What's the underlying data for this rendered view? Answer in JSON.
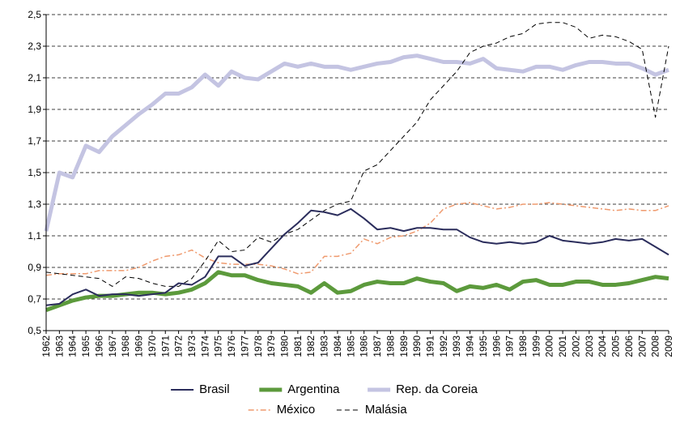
{
  "chart_data": {
    "type": "line",
    "categories": [
      "1962",
      "1963",
      "1964",
      "1965",
      "1966",
      "1967",
      "1968",
      "1969",
      "1970",
      "1971",
      "1972",
      "1973",
      "1974",
      "1975",
      "1976",
      "1977",
      "1978",
      "1979",
      "1980",
      "1981",
      "1982",
      "1983",
      "1984",
      "1985",
      "1986",
      "1987",
      "1988",
      "1989",
      "1990",
      "1991",
      "1992",
      "1993",
      "1994",
      "1995",
      "1996",
      "1997",
      "1998",
      "1999",
      "2000",
      "2001",
      "2002",
      "2003",
      "2004",
      "2005",
      "2006",
      "2007",
      "2008",
      "2009"
    ],
    "series": [
      {
        "name": "Brasil",
        "color": "#2b2d5c",
        "linewidth": 2,
        "linestyle": "solid",
        "values": [
          0.66,
          0.67,
          0.73,
          0.76,
          0.72,
          0.73,
          0.73,
          0.72,
          0.73,
          0.74,
          0.8,
          0.79,
          0.84,
          0.97,
          0.97,
          0.91,
          0.93,
          1.02,
          1.11,
          1.18,
          1.26,
          1.25,
          1.23,
          1.27,
          1.21,
          1.14,
          1.15,
          1.13,
          1.15,
          1.15,
          1.14,
          1.14,
          1.09,
          1.06,
          1.05,
          1.06,
          1.05,
          1.06,
          1.1,
          1.07,
          1.06,
          1.05,
          1.06,
          1.08,
          1.07,
          1.08,
          1.03,
          0.98
        ]
      },
      {
        "name": "Argentina",
        "color": "#5c9a3c",
        "linewidth": 5,
        "linestyle": "solid",
        "values": [
          0.63,
          0.66,
          0.69,
          0.71,
          0.72,
          0.72,
          0.73,
          0.74,
          0.74,
          0.73,
          0.74,
          0.76,
          0.8,
          0.87,
          0.85,
          0.85,
          0.82,
          0.8,
          0.79,
          0.78,
          0.74,
          0.8,
          0.74,
          0.75,
          0.79,
          0.81,
          0.8,
          0.8,
          0.83,
          0.81,
          0.8,
          0.75,
          0.78,
          0.77,
          0.79,
          0.76,
          0.81,
          0.82,
          0.79,
          0.79,
          0.81,
          0.81,
          0.79,
          0.79,
          0.8,
          0.82,
          0.84,
          0.83
        ]
      },
      {
        "name": "Rep. da Coreia",
        "color": "#c4c4e2",
        "linewidth": 5,
        "linestyle": "solid",
        "values": [
          1.13,
          1.5,
          1.47,
          1.67,
          1.63,
          1.73,
          1.8,
          1.87,
          1.93,
          2.0,
          2.0,
          2.04,
          2.12,
          2.05,
          2.14,
          2.1,
          2.09,
          2.14,
          2.19,
          2.17,
          2.19,
          2.17,
          2.17,
          2.15,
          2.17,
          2.19,
          2.2,
          2.23,
          2.24,
          2.22,
          2.2,
          2.2,
          2.19,
          2.22,
          2.16,
          2.15,
          2.14,
          2.17,
          2.17,
          2.15,
          2.18,
          2.2,
          2.2,
          2.19,
          2.19,
          2.16,
          2.12,
          2.15
        ]
      },
      {
        "name": "México",
        "color": "#ef9a6e",
        "linewidth": 1.5,
        "linestyle": "dashdot",
        "values": [
          0.85,
          0.86,
          0.86,
          0.86,
          0.88,
          0.88,
          0.88,
          0.9,
          0.94,
          0.97,
          0.98,
          1.01,
          0.96,
          0.93,
          0.92,
          0.92,
          0.92,
          0.91,
          0.89,
          0.86,
          0.87,
          0.97,
          0.97,
          0.99,
          1.08,
          1.05,
          1.09,
          1.1,
          1.13,
          1.18,
          1.27,
          1.3,
          1.31,
          1.29,
          1.27,
          1.28,
          1.3,
          1.3,
          1.31,
          1.3,
          1.29,
          1.28,
          1.27,
          1.26,
          1.27,
          1.26,
          1.26,
          1.29
        ]
      },
      {
        "name": "Malásia",
        "color": "#000000",
        "linewidth": 1,
        "linestyle": "dashed",
        "values": [
          0.87,
          0.86,
          0.85,
          0.84,
          0.83,
          0.78,
          0.84,
          0.83,
          0.8,
          0.78,
          0.78,
          0.83,
          0.94,
          1.07,
          1.0,
          1.01,
          1.09,
          1.06,
          1.11,
          1.14,
          1.2,
          1.26,
          1.3,
          1.32,
          1.51,
          1.55,
          1.64,
          1.73,
          1.82,
          1.96,
          2.05,
          2.14,
          2.26,
          2.3,
          2.32,
          2.36,
          2.38,
          2.44,
          2.45,
          2.45,
          2.42,
          2.35,
          2.37,
          2.36,
          2.33,
          2.28,
          1.85,
          2.3
        ]
      }
    ],
    "ylim": [
      0.5,
      2.5
    ],
    "yticks": [
      {
        "value": 0.5,
        "label": "0,5"
      },
      {
        "value": 0.7,
        "label": "0,7"
      },
      {
        "value": 0.9,
        "label": "0,9"
      },
      {
        "value": 1.1,
        "label": "1,1"
      },
      {
        "value": 1.3,
        "label": "1,3"
      },
      {
        "value": 1.5,
        "label": "1,5"
      },
      {
        "value": 1.7,
        "label": "1,7"
      },
      {
        "value": 1.9,
        "label": "1,9"
      },
      {
        "value": 2.1,
        "label": "2,1"
      },
      {
        "value": 2.3,
        "label": "2,3"
      },
      {
        "value": 2.5,
        "label": "2,5"
      }
    ],
    "grid": true
  }
}
